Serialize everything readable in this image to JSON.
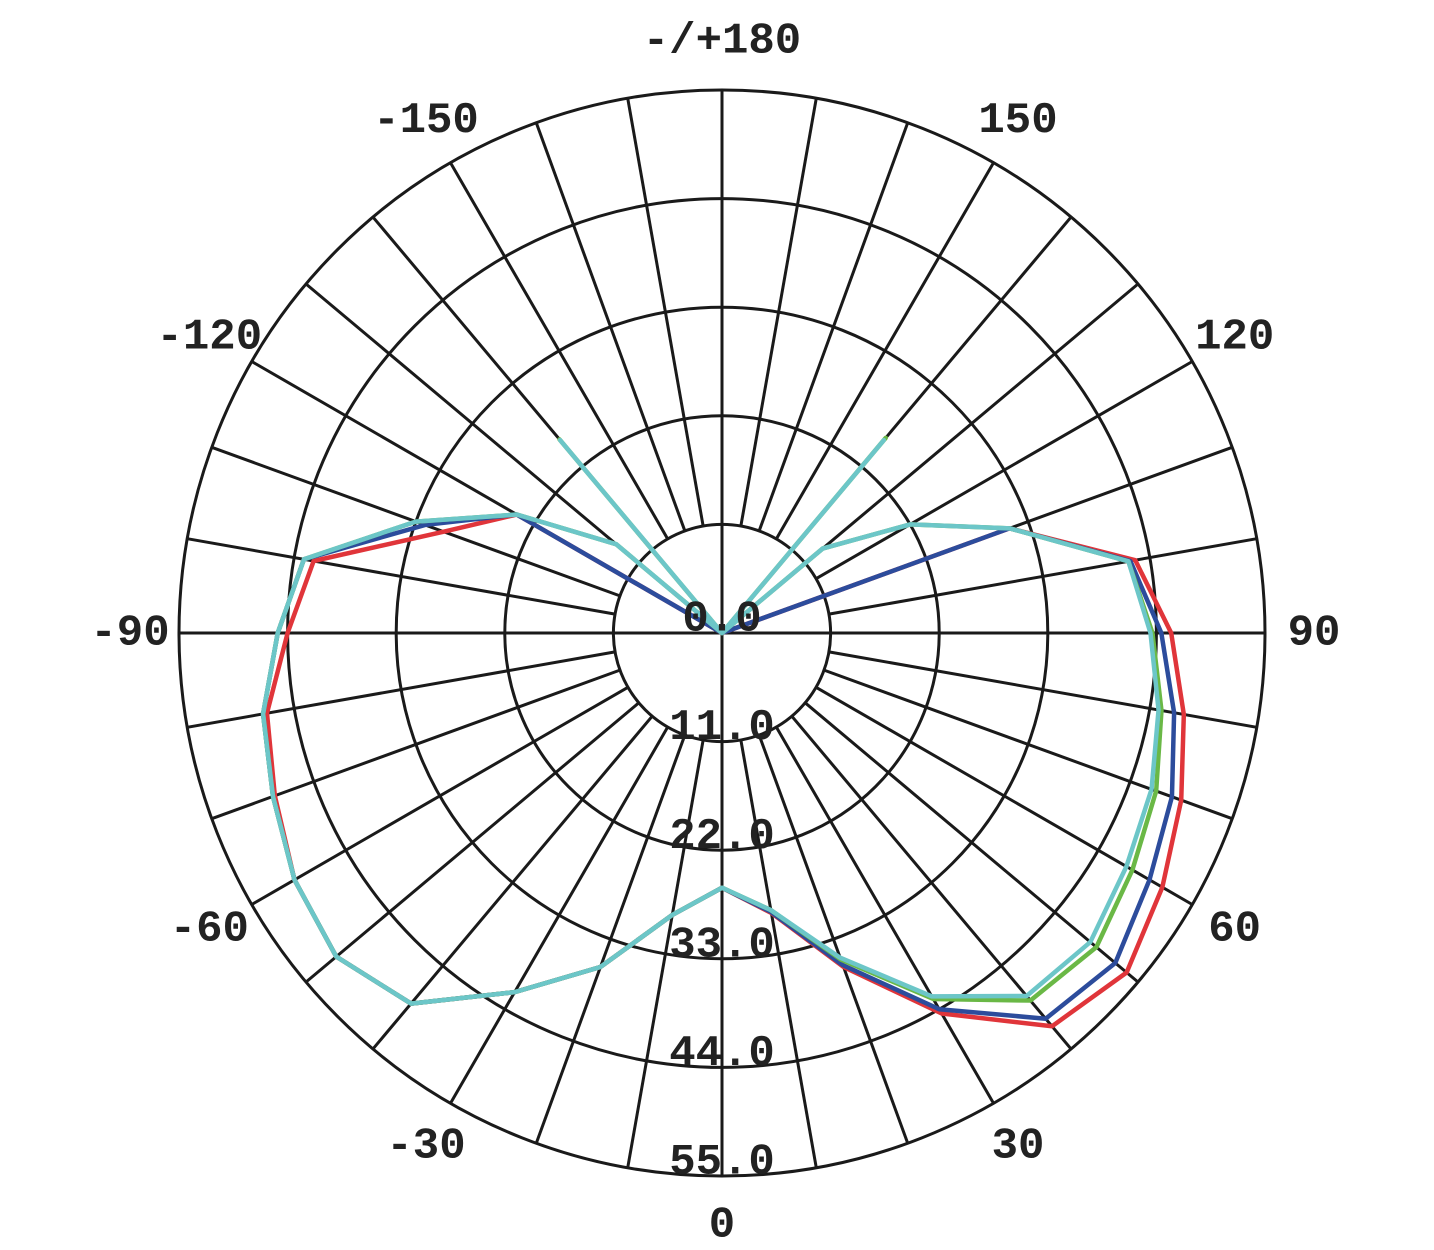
{
  "chart_data": {
    "type": "polar",
    "rlim": [
      0,
      55
    ],
    "rticks": [
      {
        "value": 0,
        "label": "0.0"
      },
      {
        "value": 11,
        "label": "11.0"
      },
      {
        "value": 22,
        "label": "22.0"
      },
      {
        "value": 33,
        "label": "33.0"
      },
      {
        "value": 44,
        "label": "44.0"
      },
      {
        "value": 55,
        "label": "55.0"
      }
    ],
    "thetaticks": [
      0,
      30,
      60,
      90,
      120,
      150,
      {
        "value": 180,
        "label": "-/+180"
      },
      -150,
      -120,
      -90,
      -60,
      -30
    ],
    "grid": true,
    "x": [
      -180,
      -170,
      -160,
      -150,
      -145,
      -140,
      -135,
      -130,
      -120,
      -110,
      -100,
      -90,
      -80,
      -70,
      -60,
      -50,
      -40,
      -30,
      -20,
      -10,
      0,
      10,
      20,
      30,
      40,
      50,
      60,
      70,
      80,
      90,
      100,
      110,
      120,
      130,
      135,
      140,
      145,
      150,
      160,
      170,
      180
    ],
    "series": [
      {
        "color": "#e0353a",
        "values": [
          0,
          0,
          0,
          0,
          0,
          0,
          0,
          0,
          24,
          30,
          42,
          44,
          46.8,
          48.2,
          50,
          51,
          49,
          42,
          36,
          29,
          25.8,
          28.8,
          36,
          44.5,
          52,
          53.5,
          51.5,
          49.5,
          47.5,
          45.5,
          42.5,
          31,
          0,
          0,
          0,
          0,
          0,
          0,
          0,
          0,
          0
        ]
      },
      {
        "color": "#2c4c9c",
        "values": [
          0,
          0,
          0,
          0,
          0,
          0,
          0,
          0,
          24,
          32,
          43,
          45,
          47.2,
          48.4,
          50,
          51,
          49,
          42,
          36,
          29,
          25.8,
          28.7,
          35.8,
          44,
          51,
          52,
          50,
          48.5,
          46.5,
          44.5,
          42,
          31,
          0,
          0,
          0,
          0,
          0,
          0,
          0,
          0,
          0
        ]
      },
      {
        "color": "#6ab846",
        "values": [
          0,
          0,
          0,
          0,
          0,
          25.6,
          0,
          14,
          24,
          33,
          43,
          45,
          47.2,
          48.4,
          50,
          51,
          49,
          42,
          36,
          29,
          25.8,
          28.5,
          35.2,
          42.8,
          48.6,
          49.5,
          48,
          46.8,
          45.2,
          43.6,
          41.8,
          31,
          22,
          13.3,
          0,
          25.8,
          0,
          0,
          0,
          0,
          0
        ]
      },
      {
        "color": "#6cc6c8",
        "values": [
          0,
          0,
          0,
          0,
          0,
          25.5,
          0,
          14,
          24,
          33,
          43,
          45,
          47.2,
          48.4,
          50,
          51,
          49,
          42,
          36,
          29,
          25.8,
          28.5,
          35,
          42.5,
          48,
          48.7,
          47.3,
          46.3,
          44.9,
          43.4,
          41.8,
          31,
          22,
          13.3,
          0,
          25.5,
          0,
          0,
          0,
          0,
          0
        ]
      }
    ]
  }
}
